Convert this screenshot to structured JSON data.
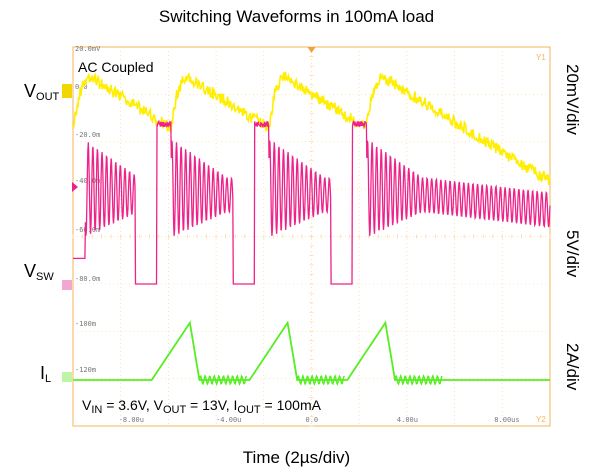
{
  "page": {
    "title": "Switching Waveforms in 100mA load",
    "xlabel": "Time (2µs/div)"
  },
  "scope": {
    "coupling_note": "AC Coupled",
    "conditions": {
      "vin_label": "V",
      "vin_sub": "IN",
      "vin_value": " = 3.6V, ",
      "vout_label": "V",
      "vout_sub": "OUT",
      "vout_value": " = 13V, ",
      "iout_label": "I",
      "iout_sub": "OUT",
      "iout_value": " = 100mA"
    },
    "ref_labels": [
      "20.0mV",
      "0.0",
      "-20.0m",
      "-40.0m",
      "-60.0m",
      "-80.0m",
      "-100m",
      "-120m"
    ],
    "time_labels": [
      "-8.00u",
      "-4.00u",
      "0.0",
      "4.00u",
      "8.00us"
    ],
    "markers": {
      "top_right": "Y1",
      "bottom_right": "Y2"
    },
    "colors": {
      "vout": "#ffee00",
      "vsw": "#ee2288",
      "il": "#55ee22",
      "grid": "#ffd9a0",
      "frame": "#f5b45a",
      "ref": "#777777"
    }
  },
  "chart_data": {
    "type": "line",
    "title": "Switching Waveforms in 100mA load",
    "xlabel": "Time (2µs/div)",
    "x_unit": "µs",
    "xlim": [
      -10,
      10
    ],
    "switching_period_us": 4.1,
    "series": [
      {
        "name": "V_OUT",
        "label_main": "V",
        "label_sub": "OUT",
        "scale": "20mV/div",
        "t_us": [
          -10.0,
          -7.4,
          -7.1,
          -6.6,
          -6.1,
          -5.9,
          -5.3,
          -3.0,
          -2.9,
          -2.6,
          -2.0,
          -1.8,
          -1.2,
          1.1,
          1.2,
          1.5,
          2.1,
          2.3,
          2.9,
          5.2,
          5.3,
          5.6
        ],
        "values_mV": [
          -6,
          -14,
          -17,
          -17,
          -15,
          -4,
          6,
          -15,
          -17,
          -17,
          -15,
          -4,
          6,
          -15,
          -17,
          -17,
          -15,
          -4,
          6,
          -15,
          -17,
          -17
        ]
      },
      {
        "name": "V_SW",
        "label_main": "V",
        "label_sub": "SW",
        "scale": "5V/div",
        "t_us": [
          -9.6,
          -7.7,
          -7.6,
          -6.6,
          -6.5,
          -6.4,
          -5.9,
          -5.8,
          -3.7,
          -3.6,
          -2.5,
          -2.4,
          -2.3,
          -1.8,
          -1.7,
          0.4,
          0.5,
          1.6,
          1.7,
          1.8,
          2.3,
          2.4
        ],
        "values_V": [
          3.6,
          13.5,
          0.0,
          0.0,
          0.0,
          22.5,
          22.5,
          13.2,
          13.5,
          0.0,
          0.0,
          0.0,
          22.5,
          22.5,
          13.2,
          13.5,
          0.0,
          0.0,
          0.0,
          22.5,
          22.5,
          13.2
        ],
        "ringing_pp_V": 14
      },
      {
        "name": "I_L",
        "label_main": "I",
        "label_sub": "L",
        "scale": "2A/div",
        "t_us": [
          -10.0,
          -6.7,
          -5.1,
          -4.7,
          -2.6,
          -1.0,
          -0.6,
          1.5,
          3.1,
          3.5,
          5.7,
          10.0
        ],
        "values_A": [
          0.0,
          0.0,
          2.1,
          0.0,
          0.0,
          2.1,
          0.0,
          0.0,
          2.1,
          0.0,
          0.0,
          0.0
        ]
      }
    ],
    "right_labels": [
      "20mV/div",
      "5V/div",
      "2A/div"
    ]
  }
}
